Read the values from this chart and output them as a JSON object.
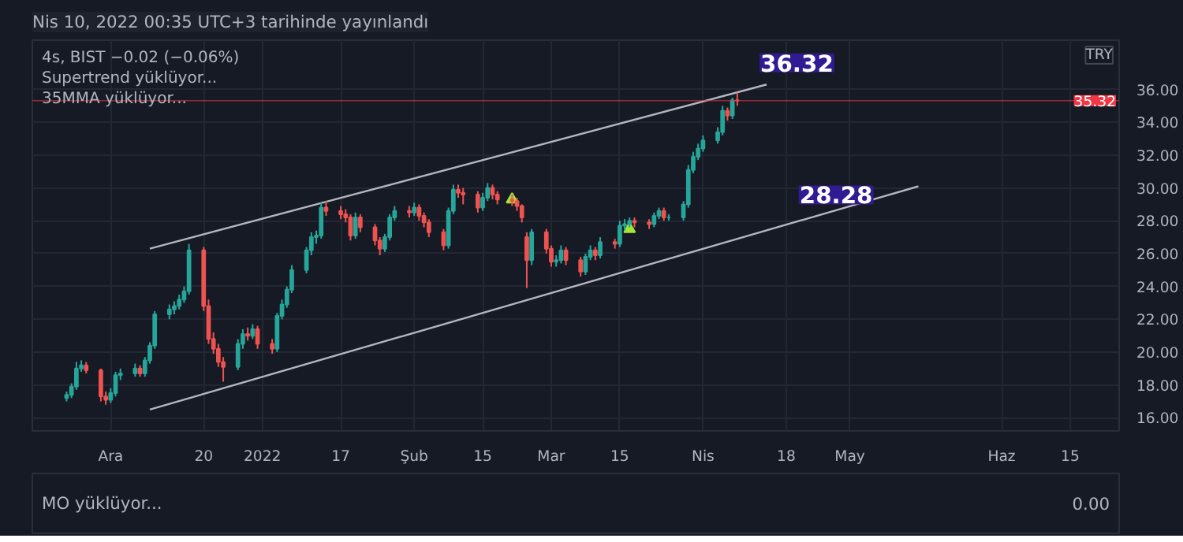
{
  "chart_data": [
    {
      "type": "candlestick",
      "title": "Nis 10, 2022 00:35 UTC+3 tarihinde yayınlandı",
      "subtitle": "4s, BIST −0.02 (−0.06%)",
      "ylabel": "TRY",
      "x": [
        "2021-11-22",
        "2021-11-23",
        "2021-11-24",
        "2021-11-25",
        "2021-11-26",
        "2021-11-29",
        "2021-11-30",
        "2021-12-01",
        "2021-12-02",
        "2021-12-03",
        "2021-12-06",
        "2021-12-07",
        "2021-12-08",
        "2021-12-09",
        "2021-12-10",
        "2021-12-13",
        "2021-12-14",
        "2021-12-15",
        "2021-12-16",
        "2021-12-17",
        "2021-12-20",
        "2021-12-21",
        "2021-12-22",
        "2021-12-23",
        "2021-12-24",
        "2021-12-27",
        "2021-12-28",
        "2021-12-29",
        "2021-12-30",
        "2021-12-31",
        "2022-01-03",
        "2022-01-04",
        "2022-01-05",
        "2022-01-06",
        "2022-01-07",
        "2022-01-10",
        "2022-01-11",
        "2022-01-12",
        "2022-01-13",
        "2022-01-14",
        "2022-01-17",
        "2022-01-18",
        "2022-01-19",
        "2022-01-20",
        "2022-01-21",
        "2022-01-24",
        "2022-01-25",
        "2022-01-26",
        "2022-01-27",
        "2022-01-28",
        "2022-01-31",
        "2022-02-01",
        "2022-02-02",
        "2022-02-03",
        "2022-02-04",
        "2022-02-07",
        "2022-02-08",
        "2022-02-09",
        "2022-02-10",
        "2022-02-11",
        "2022-02-14",
        "2022-02-15",
        "2022-02-16",
        "2022-02-17",
        "2022-02-18",
        "2022-02-21",
        "2022-02-22",
        "2022-02-23",
        "2022-02-24",
        "2022-02-25",
        "2022-02-28",
        "2022-03-01",
        "2022-03-02",
        "2022-03-03",
        "2022-03-04",
        "2022-03-07",
        "2022-03-08",
        "2022-03-09",
        "2022-03-10",
        "2022-03-11",
        "2022-03-14",
        "2022-03-15",
        "2022-03-16",
        "2022-03-17",
        "2022-03-18",
        "2022-03-21",
        "2022-03-22",
        "2022-03-23",
        "2022-03-24",
        "2022-03-25",
        "2022-03-28",
        "2022-03-29",
        "2022-03-30",
        "2022-03-31",
        "2022-04-01",
        "2022-04-04",
        "2022-04-05",
        "2022-04-06",
        "2022-04-07",
        "2022-04-08"
      ],
      "ohlc": [
        [
          17.2,
          17.6,
          17.0,
          17.4
        ],
        [
          17.4,
          18.1,
          17.2,
          17.9
        ],
        [
          17.9,
          19.4,
          17.7,
          19.0
        ],
        [
          19.0,
          19.5,
          18.8,
          19.2
        ],
        [
          19.2,
          19.4,
          18.7,
          18.9
        ],
        [
          18.9,
          19.0,
          17.0,
          17.3
        ],
        [
          17.3,
          17.6,
          16.8,
          17.1
        ],
        [
          17.1,
          17.8,
          16.9,
          17.5
        ],
        [
          17.5,
          18.8,
          17.3,
          18.6
        ],
        [
          18.6,
          19.0,
          18.3,
          18.7
        ],
        [
          18.7,
          19.3,
          18.5,
          19.0
        ],
        [
          19.0,
          19.2,
          18.5,
          18.7
        ],
        [
          18.7,
          19.7,
          18.5,
          19.5
        ],
        [
          19.5,
          20.6,
          19.3,
          20.4
        ],
        [
          20.4,
          22.5,
          20.2,
          22.3
        ],
        [
          22.3,
          22.9,
          22.0,
          22.6
        ],
        [
          22.6,
          23.1,
          22.3,
          22.8
        ],
        [
          22.8,
          23.5,
          22.6,
          23.2
        ],
        [
          23.2,
          24.0,
          23.0,
          23.7
        ],
        [
          23.7,
          26.6,
          23.5,
          26.2
        ],
        [
          26.2,
          26.4,
          22.5,
          22.8
        ],
        [
          22.8,
          23.2,
          20.5,
          20.8
        ],
        [
          20.8,
          21.2,
          19.9,
          20.2
        ],
        [
          20.2,
          20.5,
          19.1,
          19.4
        ],
        [
          19.4,
          19.7,
          18.2,
          19.1
        ],
        [
          19.1,
          20.8,
          18.9,
          20.5
        ],
        [
          20.5,
          21.4,
          20.2,
          21.1
        ],
        [
          21.1,
          21.5,
          20.7,
          21.0
        ],
        [
          21.0,
          21.7,
          20.8,
          21.4
        ],
        [
          21.4,
          21.6,
          20.2,
          20.5
        ],
        [
          20.5,
          20.8,
          19.9,
          20.2
        ],
        [
          20.2,
          22.4,
          20.0,
          22.2
        ],
        [
          22.2,
          23.2,
          22.0,
          22.9
        ],
        [
          22.9,
          24.0,
          22.7,
          23.8
        ],
        [
          23.8,
          25.3,
          23.6,
          25.0
        ],
        [
          25.0,
          26.4,
          24.8,
          26.2
        ],
        [
          26.2,
          27.3,
          25.9,
          27.0
        ],
        [
          27.0,
          27.4,
          26.6,
          27.1
        ],
        [
          27.1,
          29.1,
          26.9,
          28.8
        ],
        [
          28.8,
          29.2,
          28.3,
          28.6
        ],
        [
          28.6,
          28.9,
          28.1,
          28.4
        ],
        [
          28.4,
          28.7,
          27.9,
          28.2
        ],
        [
          28.2,
          28.4,
          26.8,
          27.1
        ],
        [
          27.1,
          28.5,
          26.9,
          28.2
        ],
        [
          28.2,
          28.4,
          27.3,
          27.6
        ],
        [
          27.6,
          27.8,
          26.5,
          26.8
        ],
        [
          26.8,
          27.0,
          25.9,
          26.3
        ],
        [
          26.3,
          27.2,
          26.1,
          27.0
        ],
        [
          27.0,
          28.4,
          26.8,
          28.2
        ],
        [
          28.2,
          28.9,
          28.0,
          28.6
        ],
        [
          28.6,
          28.9,
          28.2,
          28.5
        ],
        [
          28.5,
          29.1,
          28.3,
          28.8
        ],
        [
          28.8,
          29.0,
          28.0,
          28.3
        ],
        [
          28.3,
          28.5,
          27.6,
          27.9
        ],
        [
          27.9,
          28.1,
          27.0,
          27.3
        ],
        [
          27.3,
          27.5,
          26.2,
          26.5
        ],
        [
          26.5,
          28.8,
          26.3,
          28.6
        ],
        [
          28.6,
          30.2,
          28.4,
          29.9
        ],
        [
          29.9,
          30.2,
          29.4,
          29.7
        ],
        [
          29.7,
          30.0,
          29.0,
          29.6
        ],
        [
          29.6,
          29.8,
          28.5,
          28.8
        ],
        [
          28.8,
          29.7,
          28.6,
          29.4
        ],
        [
          29.4,
          30.3,
          29.2,
          30.0
        ],
        [
          30.0,
          30.2,
          29.3,
          29.6
        ],
        [
          29.6,
          29.8,
          29.0,
          29.3
        ],
        [
          29.3,
          29.6,
          28.9,
          29.2
        ],
        [
          29.2,
          29.4,
          28.6,
          28.9
        ],
        [
          28.9,
          29.0,
          27.9,
          28.2
        ],
        [
          27.0,
          27.3,
          23.9,
          25.6
        ],
        [
          25.6,
          27.5,
          25.3,
          27.3
        ],
        [
          27.3,
          27.5,
          26.0,
          26.3
        ],
        [
          26.3,
          26.5,
          25.2,
          25.5
        ],
        [
          25.5,
          25.9,
          25.2,
          25.6
        ],
        [
          25.6,
          26.5,
          25.4,
          26.2
        ],
        [
          26.2,
          26.4,
          25.3,
          25.6
        ],
        [
          25.6,
          25.8,
          24.6,
          24.9
        ],
        [
          24.9,
          26.0,
          24.7,
          25.8
        ],
        [
          25.8,
          26.5,
          25.6,
          26.2
        ],
        [
          26.2,
          26.4,
          25.6,
          25.9
        ],
        [
          25.9,
          27.0,
          25.7,
          26.7
        ],
        [
          26.7,
          26.9,
          26.3,
          26.6
        ],
        [
          26.6,
          28.0,
          26.4,
          27.7
        ],
        [
          27.7,
          28.1,
          27.4,
          27.8
        ],
        [
          27.8,
          28.2,
          27.6,
          28.0
        ],
        [
          28.0,
          28.2,
          27.6,
          27.9
        ],
        [
          27.9,
          28.1,
          27.5,
          27.8
        ],
        [
          27.8,
          28.5,
          27.6,
          28.3
        ],
        [
          28.3,
          28.8,
          28.1,
          28.6
        ],
        [
          28.6,
          28.8,
          28.0,
          28.2
        ],
        [
          28.2,
          28.4,
          28.0,
          28.2
        ],
        [
          28.2,
          29.2,
          28.0,
          29.0
        ],
        [
          29.0,
          31.4,
          28.8,
          31.1
        ],
        [
          31.1,
          32.2,
          30.9,
          31.9
        ],
        [
          31.9,
          32.7,
          31.7,
          32.4
        ],
        [
          32.4,
          33.2,
          32.2,
          32.9
        ],
        [
          32.9,
          33.7,
          32.7,
          33.4
        ],
        [
          33.4,
          35.0,
          33.2,
          34.7
        ],
        [
          34.7,
          34.9,
          34.1,
          34.4
        ],
        [
          34.4,
          35.5,
          34.2,
          35.34
        ],
        [
          35.34,
          35.8,
          35.0,
          35.32
        ]
      ],
      "series": [
        {
          "type": "line",
          "color": "#b2b5be",
          "x": [
            "2021-12-09",
            "2022-04-14"
          ],
          "values": [
            26.3,
            36.3
          ]
        },
        {
          "type": "line",
          "color": "#b2b5be",
          "x": [
            "2021-12-09",
            "2022-05-15"
          ],
          "values": [
            16.5,
            30.1
          ]
        },
        {
          "type": "scatter",
          "color": "#a3e635",
          "marker": "triangle",
          "x": [
            "2022-02-21",
            "2022-03-17"
          ],
          "values": [
            29.3,
            27.5
          ]
        }
      ],
      "ref_lines": [
        {
          "axis": "y",
          "value": 35.32,
          "label": "35.32",
          "color": "#f23645"
        }
      ],
      "annotations": [
        "Supertrend yüklüyor...",
        "35MMA yüklüyor...",
        {
          "text": "36.32",
          "x": "2022-04-14",
          "y": 36.32
        },
        {
          "text": "28.28",
          "x": "2022-04-22",
          "y": 28.28
        }
      ],
      "xlim": [
        "2021-11-15",
        "2022-06-25"
      ],
      "xticks": [
        {
          "value": "2021-12-01",
          "label": "Ara"
        },
        {
          "value": "2021-12-20",
          "label": "20"
        },
        {
          "value": "2022-01-01",
          "label": "2022"
        },
        {
          "value": "2022-01-17",
          "label": "17"
        },
        {
          "value": "2022-02-01",
          "label": "Şub"
        },
        {
          "value": "2022-02-15",
          "label": "15"
        },
        {
          "value": "2022-03-01",
          "label": "Mar"
        },
        {
          "value": "2022-03-15",
          "label": "15"
        },
        {
          "value": "2022-04-01",
          "label": "Nis"
        },
        {
          "value": "2022-04-18",
          "label": "18"
        },
        {
          "value": "2022-05-01",
          "label": "May"
        },
        {
          "value": "2022-06-01",
          "label": "Haz"
        },
        {
          "value": "2022-06-15",
          "label": "15"
        }
      ],
      "ylim": [
        15.2,
        39.0
      ],
      "yticks": [
        {
          "value": 16,
          "label": "16.00"
        },
        {
          "value": 18,
          "label": "18.00"
        },
        {
          "value": 20,
          "label": "20.00"
        },
        {
          "value": 22,
          "label": "22.00"
        },
        {
          "value": 24,
          "label": "24.00"
        },
        {
          "value": 26,
          "label": "26.00"
        },
        {
          "value": 28,
          "label": "28.00"
        },
        {
          "value": 30,
          "label": "30.00"
        },
        {
          "value": 32,
          "label": "32.00"
        },
        {
          "value": 34,
          "label": "34.00"
        },
        {
          "value": 36,
          "label": "36.00"
        }
      ],
      "grid": true
    },
    {
      "type": "other",
      "annotations": [
        "MO yüklüyor...",
        "0.00"
      ]
    }
  ]
}
